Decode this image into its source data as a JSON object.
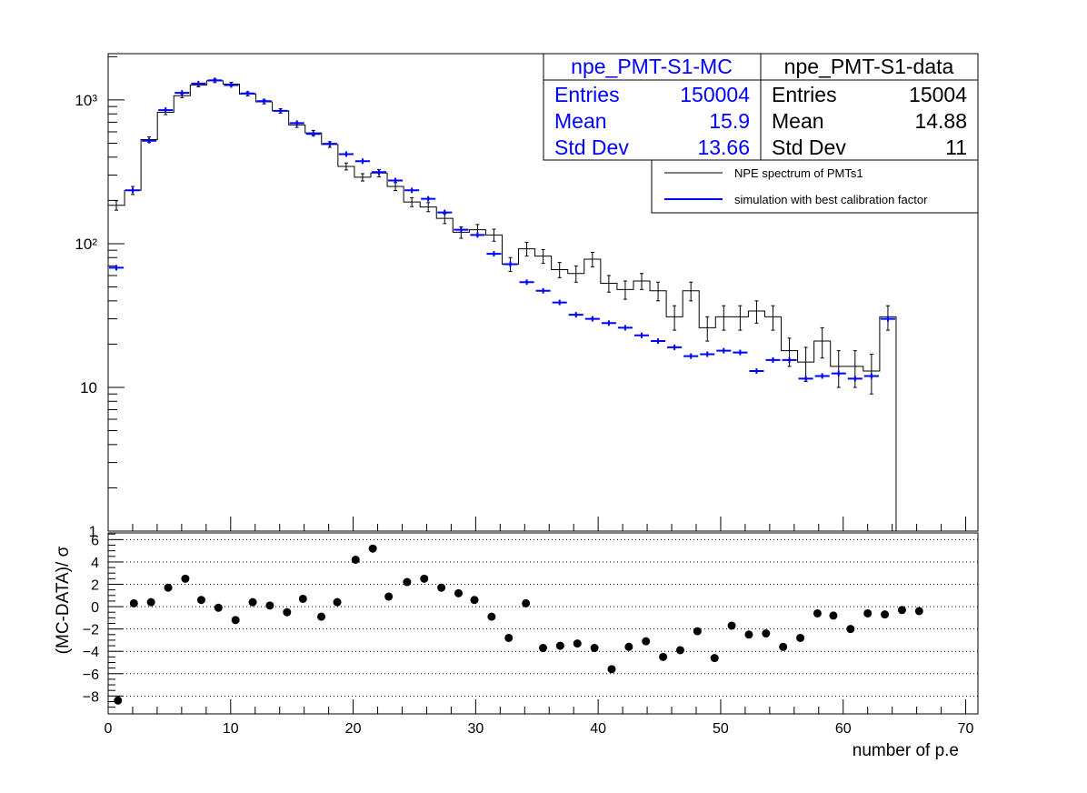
{
  "chart_data": [
    {
      "type": "histogram",
      "yscale": "log",
      "xlim": [
        0,
        71
      ],
      "ylim": [
        1,
        2100
      ],
      "bin_width": 1.34,
      "y_tick_labels": [
        "1",
        "10",
        "10²",
        "10³"
      ],
      "series": [
        {
          "name": "NPE spectrum of PMTs1",
          "color": "#000000",
          "style": "step-with-errorbars",
          "values": [
            185,
            235,
            530,
            820,
            1070,
            1270,
            1360,
            1290,
            1100,
            970,
            840,
            670,
            590,
            490,
            345,
            290,
            310,
            250,
            195,
            180,
            150,
            120,
            125,
            115,
            72,
            92,
            82,
            66,
            62,
            78,
            53,
            48,
            55,
            47,
            31,
            47,
            26,
            31,
            31,
            34,
            31,
            18,
            15,
            21,
            14,
            14,
            13,
            31
          ],
          "errors": [
            14,
            15,
            23,
            29,
            33,
            36,
            37,
            36,
            33,
            31,
            29,
            26,
            24,
            22,
            19,
            17,
            18,
            16,
            14,
            13,
            12,
            11,
            11,
            11,
            8,
            10,
            9,
            8,
            8,
            9,
            7,
            7,
            7,
            7,
            6,
            7,
            5,
            6,
            6,
            6,
            6,
            4,
            4,
            5,
            4,
            4,
            4,
            6
          ]
        },
        {
          "name": "simulation with best calibration factor",
          "color": "#0000ff",
          "style": "markers-with-errorbars",
          "values": [
            68,
            235,
            520,
            850,
            1120,
            1300,
            1370,
            1270,
            1110,
            980,
            840,
            690,
            580,
            495,
            420,
            375,
            315,
            275,
            235,
            205,
            165,
            125,
            115,
            85,
            72,
            54,
            47,
            39,
            32,
            30,
            28,
            26,
            23,
            21,
            19,
            16.5,
            17,
            18,
            17.5,
            13,
            15.5,
            15.5,
            11.5,
            12,
            12.5,
            11.5,
            12,
            30
          ]
        }
      ]
    },
    {
      "type": "scatter",
      "xlabel": "number of p.e",
      "ylabel": "(MC-DATA)/ σ",
      "xlim": [
        0,
        71
      ],
      "ylim": [
        -9.6,
        6.6
      ],
      "x_ticks": [
        0,
        10,
        20,
        30,
        40,
        50,
        60,
        70
      ],
      "y_ticks": [
        6,
        4,
        2,
        0,
        -2,
        -4,
        -6,
        -8
      ],
      "grid": "horizontal-dotted",
      "x": [
        0.8,
        2.1,
        3.5,
        4.9,
        6.3,
        7.6,
        9.0,
        10.4,
        11.8,
        13.2,
        14.6,
        15.9,
        17.4,
        18.7,
        20.2,
        21.6,
        22.9,
        24.4,
        25.8,
        27.2,
        28.6,
        29.9,
        31.3,
        32.7,
        34.1,
        35.5,
        36.9,
        38.3,
        39.7,
        41.1,
        42.5,
        43.9,
        45.3,
        46.7,
        48.1,
        49.5,
        50.9,
        52.3,
        53.7,
        55.1,
        56.5,
        57.9,
        59.2,
        60.6,
        62.0,
        63.4,
        64.8,
        66.2
      ],
      "y": [
        -8.4,
        0.3,
        0.4,
        1.7,
        2.5,
        0.6,
        -0.1,
        -1.2,
        0.4,
        0.1,
        -0.5,
        0.7,
        -0.9,
        0.4,
        4.2,
        5.2,
        0.9,
        2.2,
        2.5,
        1.7,
        1.2,
        0.6,
        -0.9,
        -2.8,
        0.3,
        -3.7,
        -3.5,
        -3.3,
        -3.7,
        -5.6,
        -3.6,
        -3.1,
        -4.5,
        -3.9,
        -2.2,
        -4.6,
        -1.7,
        -2.5,
        -2.4,
        -3.6,
        -2.8,
        -0.6,
        -0.8,
        -2.0,
        -0.6,
        -0.7,
        -0.3,
        -0.4
      ]
    }
  ],
  "stats_mc": {
    "title": "npe_PMT-S1-MC",
    "rows": [
      {
        "label": "Entries",
        "value": "150004"
      },
      {
        "label": "Mean",
        "value": "15.9"
      },
      {
        "label": "Std Dev",
        "value": "13.66"
      }
    ]
  },
  "stats_data": {
    "title": "npe_PMT-S1-data",
    "rows": [
      {
        "label": "Entries",
        "value": "15004"
      },
      {
        "label": "Mean",
        "value": "14.88"
      },
      {
        "label": "Std Dev",
        "value": "11"
      }
    ]
  },
  "legend": {
    "entries": [
      {
        "label": "NPE spectrum of PMTs1",
        "color": "#000000"
      },
      {
        "label": "simulation with best calibration factor",
        "color": "#0000ff"
      }
    ]
  },
  "colors": {
    "data": "#000000",
    "mc": "#0000ff",
    "frame": "#000000"
  }
}
